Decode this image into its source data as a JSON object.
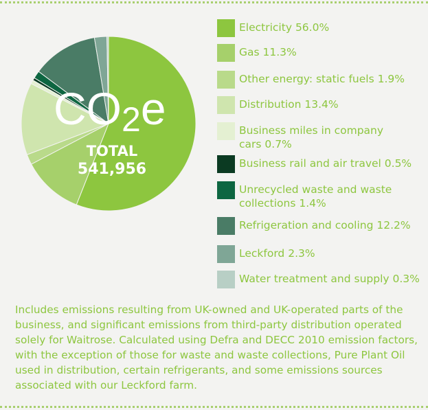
{
  "chart_data": {
    "type": "pie",
    "categories": [
      "Electricity",
      "Gas",
      "Other energy: static fuels",
      "Distribution",
      "Business miles in company cars",
      "Business rail and air travel",
      "Unrecycled waste and waste collections",
      "Refrigeration and cooling",
      "Leckford",
      "Water treatment and supply"
    ],
    "values": [
      56.0,
      11.3,
      1.9,
      13.4,
      0.7,
      0.5,
      1.4,
      12.2,
      2.3,
      0.3
    ],
    "value_labels": [
      "56.0%",
      "11.3%",
      "1.9%",
      "13.4%",
      "0.7%",
      "0.5%",
      "1.4%",
      "12.2%",
      "2.3%",
      "0.3%"
    ],
    "colors": [
      "#8dc63f",
      "#a6d06b",
      "#b9da8a",
      "#cfe5ae",
      "#e4f0d2",
      "#0b3a22",
      "#0d6641",
      "#4a7c66",
      "#7fa696",
      "#b8cfc5"
    ],
    "center_label": {
      "main": "CO",
      "sub": "2",
      "suffix": "e"
    },
    "total": {
      "label": "TOTAL",
      "value": 541956,
      "value_label": "541,956"
    },
    "note": "Includes emissions resulting from UK-owned and UK-operated parts of the business, and significant emissions from third-party distribution operated solely for Waitrose. Calculated using Defra and DECC 2010 emission factors, with the exception of those for waste and waste collections, Pure Plant Oil used in distribution, certain refrigerants, and some emissions sources associated with our Leckford farm."
  }
}
